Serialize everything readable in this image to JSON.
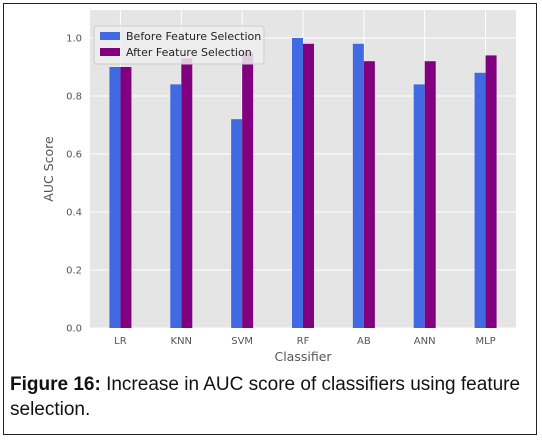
{
  "caption": {
    "figure_label": "Figure 16:",
    "text": " Increase in AUC score of classifiers using feature selection."
  },
  "chart_data": {
    "type": "bar",
    "title": "",
    "xlabel": "Classifier",
    "ylabel": "AUC Score",
    "categories": [
      "LR",
      "KNN",
      "SVM",
      "RF",
      "AB",
      "ANN",
      "MLP"
    ],
    "ylim": [
      0,
      1.05
    ],
    "yticks": [
      "0.0",
      "0.2",
      "0.4",
      "0.6",
      "0.8",
      "1.0"
    ],
    "grid": true,
    "legend": "top-left",
    "series": [
      {
        "name": "Before Feature Selection",
        "color": "#4169e1",
        "values": [
          0.9,
          0.84,
          0.72,
          1.0,
          0.98,
          0.84,
          0.88
        ]
      },
      {
        "name": "After Feature Selection",
        "color": "#800080",
        "values": [
          0.9,
          0.93,
          0.95,
          0.98,
          0.92,
          0.92,
          0.94
        ]
      }
    ],
    "colors": {
      "background": "#e5e5e5",
      "grid": "#ffffff"
    }
  }
}
